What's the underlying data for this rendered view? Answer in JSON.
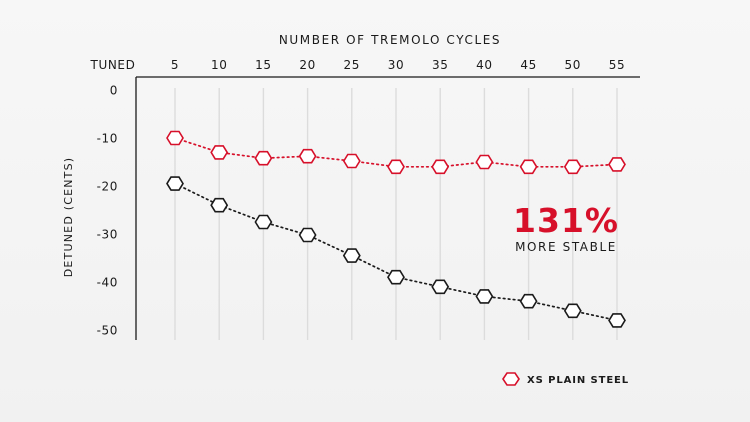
{
  "chart_data": {
    "type": "line",
    "title": "NUMBER OF TREMOLO CYCLES",
    "xlabel": "NUMBER OF TREMOLO CYCLES",
    "ylabel": "DETUNED (CENTS)",
    "x_tick_labels": [
      "TUNED",
      "5",
      "10",
      "15",
      "20",
      "25",
      "30",
      "35",
      "40",
      "45",
      "50",
      "55"
    ],
    "x": [
      5,
      10,
      15,
      20,
      25,
      30,
      35,
      40,
      45,
      50,
      55
    ],
    "y_ticks": [
      0,
      -10,
      -20,
      -30,
      -40,
      -50
    ],
    "y_tick_labels": [
      "0",
      "-10",
      "-20",
      "-30",
      "-40",
      "-50"
    ],
    "ylim": [
      -52,
      2
    ],
    "grid": "vertical",
    "series": [
      {
        "name": "XS PLAIN STEEL",
        "color": "#d7102a",
        "values": [
          -10,
          -13,
          -14.2,
          -13.8,
          -14.8,
          -16,
          -16,
          -15,
          -16,
          -16,
          -15.5
        ]
      },
      {
        "color": "#1b1b1b",
        "values": [
          -19.5,
          -24,
          -27.5,
          -30.2,
          -34.5,
          -39,
          -41,
          -43,
          -44,
          -46,
          -48
        ]
      }
    ],
    "annotation": {
      "value": "131%",
      "text": "MORE STABLE",
      "color": "#d7102a"
    },
    "legend": {
      "label": "XS PLAIN STEEL",
      "position": "bottom-right"
    }
  }
}
